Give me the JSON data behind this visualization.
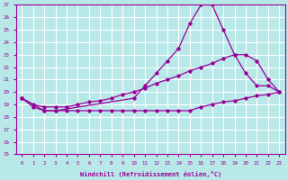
{
  "xlabel": "Windchill (Refroidissement éolien,°C)",
  "xlim": [
    -0.5,
    23.5
  ],
  "ylim": [
    15,
    27
  ],
  "yticks": [
    15,
    16,
    17,
    18,
    19,
    20,
    21,
    22,
    23,
    24,
    25,
    26,
    27
  ],
  "xticks": [
    0,
    1,
    2,
    3,
    4,
    5,
    6,
    7,
    8,
    9,
    10,
    11,
    12,
    13,
    14,
    15,
    16,
    17,
    18,
    19,
    20,
    21,
    22,
    23
  ],
  "line_color": "#990099",
  "bg_color": "#b8e8e8",
  "grid_color": "#ffffff",
  "line1_x": [
    0,
    1,
    2,
    3,
    4,
    5,
    6,
    7,
    8,
    9,
    10,
    11,
    12,
    13,
    14,
    15,
    16,
    17,
    18,
    19,
    20,
    21,
    22,
    23
  ],
  "line1_y": [
    19.5,
    18.8,
    18.5,
    18.5,
    18.5,
    18.5,
    18.5,
    18.5,
    18.5,
    18.5,
    18.5,
    18.5,
    18.5,
    18.5,
    18.5,
    18.5,
    18.8,
    19.0,
    19.2,
    19.3,
    19.5,
    19.7,
    19.8,
    20.0
  ],
  "line2_x": [
    0,
    1,
    2,
    3,
    4,
    5,
    6,
    7,
    8,
    9,
    10,
    11,
    12,
    13,
    14,
    15,
    16,
    17,
    18,
    19,
    20,
    21,
    22,
    23
  ],
  "line2_y": [
    19.5,
    19.0,
    18.8,
    18.8,
    18.8,
    19.0,
    19.2,
    19.3,
    19.5,
    19.8,
    20.0,
    20.3,
    20.7,
    21.0,
    21.3,
    21.7,
    22.0,
    22.3,
    22.7,
    23.0,
    23.0,
    22.5,
    21.0,
    20.0
  ],
  "line3_x": [
    0,
    2,
    3,
    10,
    11,
    12,
    13,
    14,
    15,
    16,
    17,
    18,
    19,
    20,
    21,
    22,
    23
  ],
  "line3_y": [
    19.5,
    18.5,
    18.5,
    19.5,
    20.5,
    21.5,
    22.5,
    23.5,
    25.5,
    27.0,
    27.0,
    25.0,
    23.0,
    21.5,
    20.5,
    20.5,
    20.0
  ]
}
